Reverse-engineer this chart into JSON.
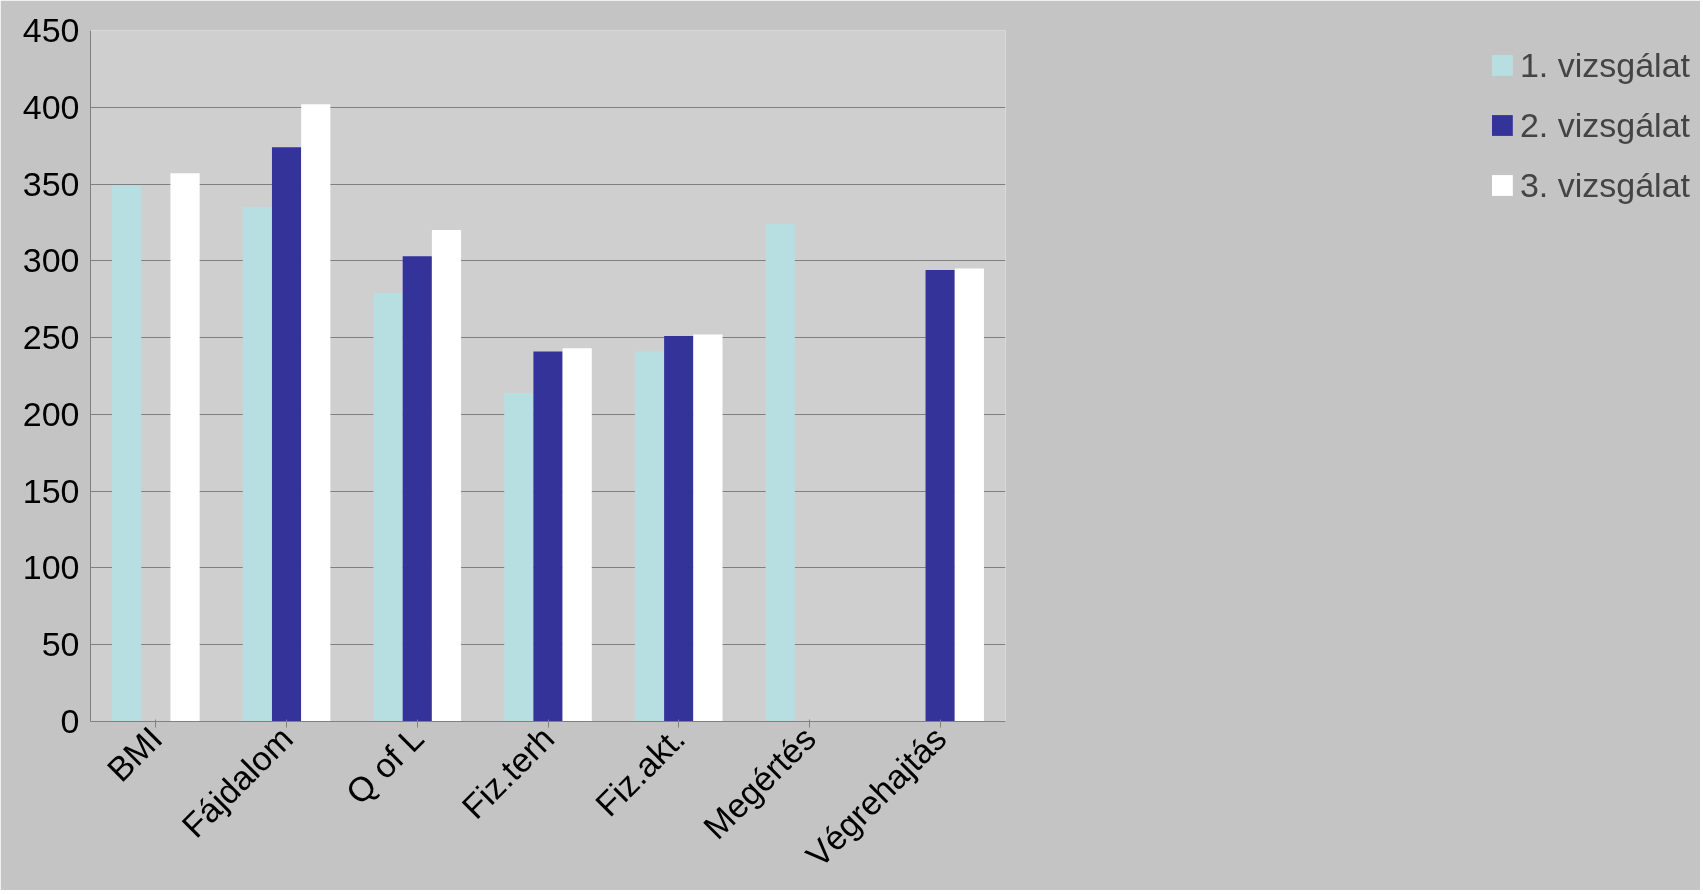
{
  "chart_data": {
    "type": "bar",
    "categories": [
      "BMI",
      "Fájdalom",
      "Q of L",
      "Fiz.terh",
      "Fiz.akt.",
      "Megértés",
      "Végrehajtás"
    ],
    "series": [
      {
        "name": "1. vizsgálat",
        "color": "#b7dfe1",
        "values": [
          349,
          335,
          279,
          214,
          241,
          324,
          null
        ]
      },
      {
        "name": "2. vizsgálat",
        "color": "#333399",
        "values": [
          null,
          374,
          303,
          241,
          251,
          null,
          294
        ]
      },
      {
        "name": "3. vizsgálat",
        "color": "#ffffff",
        "values": [
          357,
          402,
          320,
          243,
          252,
          null,
          295
        ]
      }
    ],
    "ylim": [
      0,
      450
    ],
    "yticks": [
      0,
      50,
      100,
      150,
      200,
      250,
      300,
      350,
      400,
      450
    ],
    "grid": "y",
    "legend": "right"
  }
}
